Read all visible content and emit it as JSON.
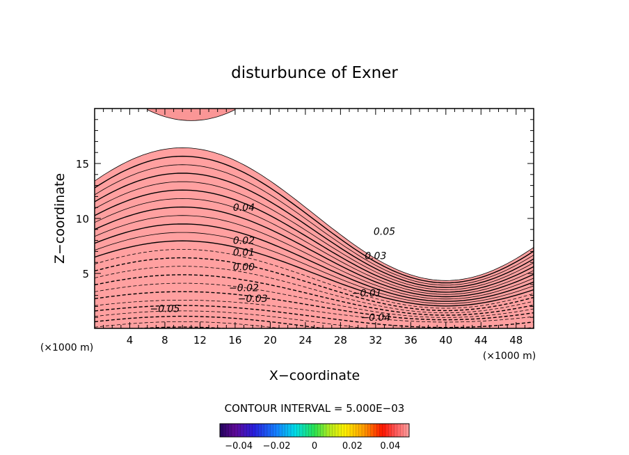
{
  "chart_data": {
    "type": "contour",
    "title": "disturbunce of Exner",
    "xlabel": "X−coordinate",
    "ylabel": "Z−coordinate",
    "x_unit_left": "(×1000 m)",
    "x_unit_right": "(×1000 m)",
    "xlim": [
      0,
      50
    ],
    "ylim": [
      0,
      20
    ],
    "x_ticks": [
      "4",
      "8",
      "12",
      "16",
      "20",
      "24",
      "28",
      "32",
      "36",
      "40",
      "44",
      "48"
    ],
    "y_ticks": [
      "5",
      "10",
      "15"
    ],
    "contour_interval_text": "CONTOUR INTERVAL = 5.000E−03",
    "contour_interval": 0.005,
    "contour_labels": [
      {
        "text": "0.04",
        "x": 17,
        "z": 10.7
      },
      {
        "text": "0.05",
        "x": 33,
        "z": 8.5
      },
      {
        "text": "0.03",
        "x": 32,
        "z": 6.3
      },
      {
        "text": "0.02",
        "x": 17,
        "z": 7.7
      },
      {
        "text": "0.01",
        "x": 17,
        "z": 6.6
      },
      {
        "text": "0.00",
        "x": 17,
        "z": 5.3
      },
      {
        "text": "−0.01",
        "x": 31,
        "z": 2.9
      },
      {
        "text": "−0.02",
        "x": 17,
        "z": 3.4
      },
      {
        "text": "−0.03",
        "x": 18,
        "z": 2.4
      },
      {
        "text": "−0.04",
        "x": 32,
        "z": 0.7
      },
      {
        "text": "−0.05",
        "x": 8,
        "z": 1.5
      }
    ],
    "colorbar": {
      "range": [
        -0.05,
        0.05
      ],
      "tick_labels": [
        "−0.04",
        "−0.02",
        "0",
        "0.02",
        "0.04"
      ],
      "tick_values": [
        -0.04,
        -0.02,
        0,
        0.02,
        0.04
      ]
    }
  }
}
